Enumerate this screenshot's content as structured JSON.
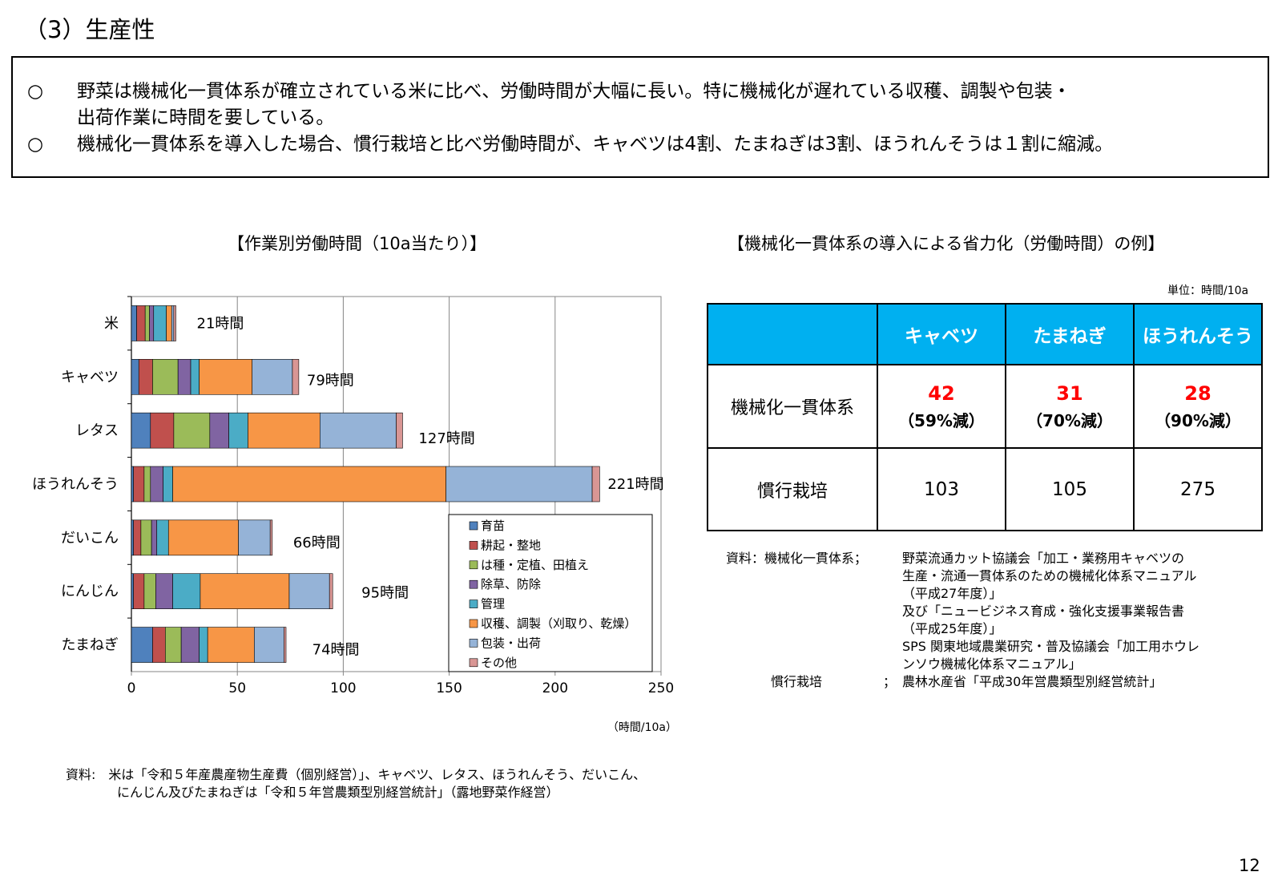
{
  "section_title": "（3）生産性",
  "summary": {
    "bullets": [
      {
        "mark": "○",
        "lines": [
          "野菜は機械化一貫体系が確立されている米に比べ、労働時間が大幅に長い。特に機械化が遅れている収穫、調製や包装・",
          "出荷作業に時間を要している。"
        ]
      },
      {
        "mark": "○",
        "lines": [
          "機械化一貫体系を導入した場合、慣行栽培と比べ労働時間が、キャベツは4割、たまねぎは3割、ほうれんそうは１割に縮減。"
        ]
      }
    ]
  },
  "left_chart_title": "【作業別労働時間（10a当たり）】",
  "right_table_title": "【機械化一貫体系の導入による省力化（労働時間）の例】",
  "chart_data": {
    "type": "bar",
    "orientation": "horizontal",
    "stacked": true,
    "categories": [
      "米",
      "キャベツ",
      "レタス",
      "ほうれんそう",
      "だいこん",
      "にんじん",
      "たまねぎ"
    ],
    "series": [
      {
        "name": "育苗",
        "color": "#4f81bd",
        "values": [
          2.5,
          3.5,
          9,
          1,
          1,
          1,
          10
        ]
      },
      {
        "name": "耕起・整地",
        "color": "#c0504d",
        "values": [
          4,
          6.5,
          11,
          5,
          3.5,
          5,
          6
        ]
      },
      {
        "name": "は種・定植、田植え",
        "color": "#9bbb59",
        "values": [
          2,
          12,
          17,
          3,
          5,
          5.5,
          7.5
        ]
      },
      {
        "name": "除草、防除",
        "color": "#8064a2",
        "values": [
          2,
          6,
          9,
          6,
          2.5,
          8,
          8.5
        ]
      },
      {
        "name": "管理",
        "color": "#4bacc6",
        "values": [
          6,
          4,
          9,
          4.5,
          5.5,
          13,
          4
        ]
      },
      {
        "name": "収穫、調製（刈取り、乾燥）",
        "color": "#f79646",
        "values": [
          2.5,
          25,
          34,
          129,
          33,
          42,
          22
        ]
      },
      {
        "name": "包装・出荷",
        "color": "#95b3d7",
        "values": [
          1,
          19,
          36,
          69,
          15,
          19,
          14
        ]
      },
      {
        "name": "その他",
        "color": "#d99694",
        "values": [
          1,
          3,
          3,
          3.5,
          1,
          1.5,
          1
        ]
      }
    ],
    "totals": [
      21,
      79,
      127,
      221,
      66,
      95,
      74
    ],
    "total_labels": [
      "21時間",
      "79時間",
      "127時間",
      "221時間",
      "66時間",
      "95時間",
      "74時間"
    ],
    "xlim": [
      0,
      250
    ],
    "xticks": [
      0,
      50,
      100,
      150,
      200,
      250
    ],
    "xunit_label": "（時間/10a）",
    "grid": true,
    "legend_position": "bottom-right"
  },
  "table": {
    "unit": "単位：時間/10a",
    "columns": [
      "キャベツ",
      "たまねぎ",
      "ほうれんそう"
    ],
    "rows": [
      {
        "label": "機械化一貫体系",
        "values": [
          "42",
          "31",
          "28"
        ],
        "notes": [
          "（59%減）",
          "（70%減）",
          "（90%減）"
        ]
      },
      {
        "label": "慣行栽培",
        "values": [
          "103",
          "105",
          "275"
        ]
      }
    ]
  },
  "source_right": {
    "label1": "資料：機械化一貫体系；",
    "lines1": [
      "野菜流通カット協議会「加工・業務用キャベツの",
      "生産・流通一貫体系のための機械化体系マニュアル",
      "（平成27年度）」",
      "及び「ニュービジネス育成・強化支援事業報告書",
      "（平成25年度）」",
      "SPS 関東地域農業研究・普及協議会「加工用ホウレ",
      "ンソウ機械化体系マニュアル」"
    ],
    "label2": "慣行栽培",
    "sep2": "；",
    "line2": "農林水産省「平成30年営農類型別経営統計」"
  },
  "source_left": [
    "資料:　米は「令和５年産農産物生産費（個別経営）」、キャベツ、レタス、ほうれんそう、だいこん、",
    "　　　　にんじん及びたまねぎは「令和５年営農類型別経営統計」（露地野菜作経営）"
  ],
  "page_number": "12"
}
